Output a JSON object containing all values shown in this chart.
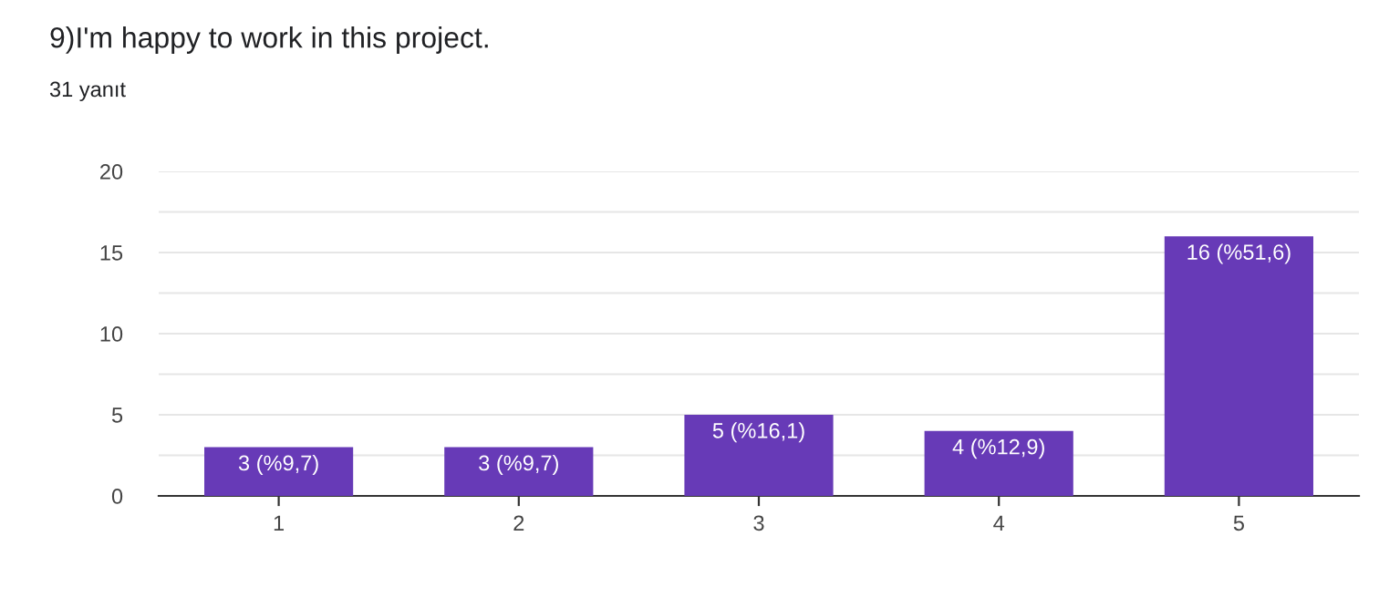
{
  "chart_data": {
    "type": "bar",
    "title": "9)I'm happy to work in this project.",
    "subtitle": "31 yanıt",
    "categories": [
      "1",
      "2",
      "3",
      "4",
      "5"
    ],
    "values": [
      3,
      3,
      5,
      4,
      16
    ],
    "value_labels": [
      "3 (%9,7)",
      "3 (%9,7)",
      "5 (%16,1)",
      "4 (%12,9)",
      "16 (%51,6)"
    ],
    "color": "#673ab7",
    "ylim": [
      0,
      20
    ],
    "yticks": [
      0,
      {
        "value": 2.5,
        "label": null
      },
      5,
      {
        "value": 7.5,
        "label": null
      },
      10,
      {
        "value": 12.5,
        "label": null
      },
      15,
      {
        "value": 17.5,
        "label": null
      },
      20
    ],
    "grid": "y"
  }
}
